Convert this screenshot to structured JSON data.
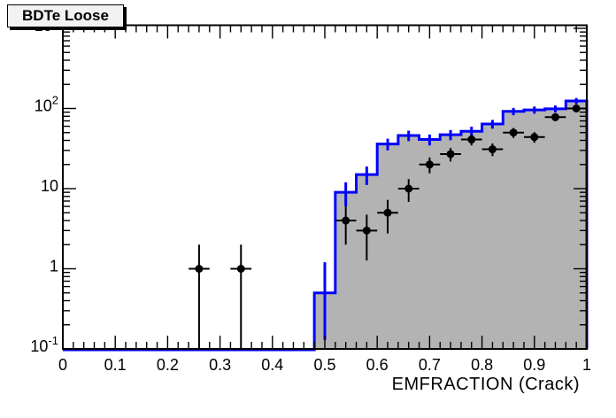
{
  "title_box": {
    "text": "BDTe Loose"
  },
  "colors": {
    "histogram_line": "#0000ff",
    "histogram_fill": "#b3b3b3",
    "marker": "#000000",
    "frame": "#000000",
    "background": "#ffffff",
    "title_box_bg": "#f2f2f2"
  },
  "chart_data": {
    "type": "histogram",
    "title": "BDTe Loose",
    "xlabel": "EMFRACTION (Crack)",
    "ylabel": "",
    "xlim": [
      0,
      1
    ],
    "ylim": [
      0.1,
      1100
    ],
    "yscale": "log",
    "grid": false,
    "legend": null,
    "x_tick_values": [
      0,
      0.1,
      0.2,
      0.3,
      0.4,
      0.5,
      0.6,
      0.7,
      0.8,
      0.9,
      1
    ],
    "x_tick_labels": [
      "0",
      "0.1",
      "0.2",
      "0.3",
      "0.4",
      "0.5",
      "0.6",
      "0.7",
      "0.8",
      "0.9",
      "1"
    ],
    "x_minor_tick_step": 0.02,
    "y_tick_values": [
      0.1,
      1,
      10,
      100,
      1000
    ],
    "y_tick_labels": [
      {
        "base": "10",
        "exp": "-1"
      },
      {
        "base": "1",
        "exp": null
      },
      {
        "base": "10",
        "exp": null
      },
      {
        "base": "10",
        "exp": "2"
      },
      {
        "base": "10",
        "exp": "3"
      }
    ],
    "bin_width": 0.04,
    "series": [
      {
        "name": "mc-histogram",
        "type": "step-filled",
        "line_color": "#0000ff",
        "fill_color": "#b3b3b3",
        "baseline_start_x": 0,
        "first_nonzero_bin_left_edge": 0.48,
        "bin_centers": [
          0.5,
          0.54,
          0.58,
          0.62,
          0.66,
          0.7,
          0.74,
          0.78,
          0.82,
          0.86,
          0.9,
          0.94,
          0.98
        ],
        "values": [
          0.5,
          9,
          15,
          36,
          46,
          41,
          47,
          52,
          64,
          92,
          96,
          99,
          124
        ],
        "errors": "poisson-sqrt"
      },
      {
        "name": "data-points",
        "type": "scatter-errorbars",
        "color": "#000000",
        "marker": "filled-circle",
        "x": [
          0.26,
          0.34,
          0.54,
          0.58,
          0.62,
          0.66,
          0.7,
          0.74,
          0.78,
          0.82,
          0.86,
          0.9,
          0.94,
          0.98
        ],
        "y": [
          1,
          1,
          4,
          3,
          5,
          10,
          20,
          27,
          41,
          31,
          50,
          44,
          78,
          100
        ],
        "x_err": 0.02,
        "y_err": "poisson-sqrt"
      }
    ]
  }
}
